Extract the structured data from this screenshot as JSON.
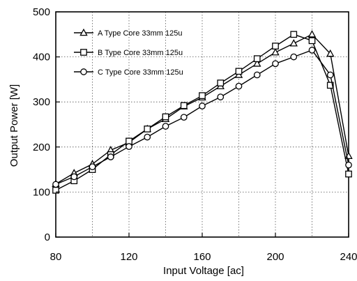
{
  "chart_data": {
    "type": "line",
    "xlabel": "Input Voltage [ac]",
    "ylabel": "Output Power [W]",
    "xlim": [
      80,
      240
    ],
    "ylim": [
      0,
      500
    ],
    "xticks": [
      80,
      120,
      160,
      200,
      240
    ],
    "yticks": [
      0,
      100,
      200,
      300,
      400,
      500
    ],
    "x_tick_labels": [
      "80",
      "120",
      "160",
      "200",
      "240"
    ],
    "y_tick_labels": [
      "0",
      "100",
      "200",
      "300",
      "400",
      "500"
    ],
    "grid": true,
    "legend_position": "top-left",
    "series": [
      {
        "name": "A Type Core 33mm 125u",
        "marker": "triangle",
        "x": [
          80,
          90,
          100,
          110,
          120,
          130,
          140,
          150,
          160,
          170,
          180,
          190,
          200,
          210,
          220,
          230,
          240
        ],
        "y": [
          118,
          142,
          162,
          193,
          210,
          240,
          262,
          290,
          310,
          335,
          360,
          385,
          410,
          430,
          450,
          407,
          180
        ]
      },
      {
        "name": "B Type Core 33mm 125u",
        "marker": "square",
        "x": [
          80,
          90,
          100,
          110,
          120,
          130,
          140,
          150,
          160,
          170,
          180,
          190,
          200,
          210,
          220,
          230,
          240
        ],
        "y": [
          104,
          125,
          150,
          183,
          213,
          240,
          267,
          292,
          314,
          342,
          368,
          396,
          424,
          450,
          436,
          337,
          140
        ]
      },
      {
        "name": "C Type Core 33mm 125u",
        "marker": "circle",
        "x": [
          80,
          90,
          100,
          110,
          120,
          130,
          140,
          150,
          160,
          170,
          180,
          190,
          200,
          210,
          220,
          230,
          240
        ],
        "y": [
          117,
          134,
          156,
          178,
          201,
          222,
          246,
          266,
          291,
          311,
          335,
          360,
          385,
          400,
          415,
          360,
          160
        ]
      }
    ]
  }
}
